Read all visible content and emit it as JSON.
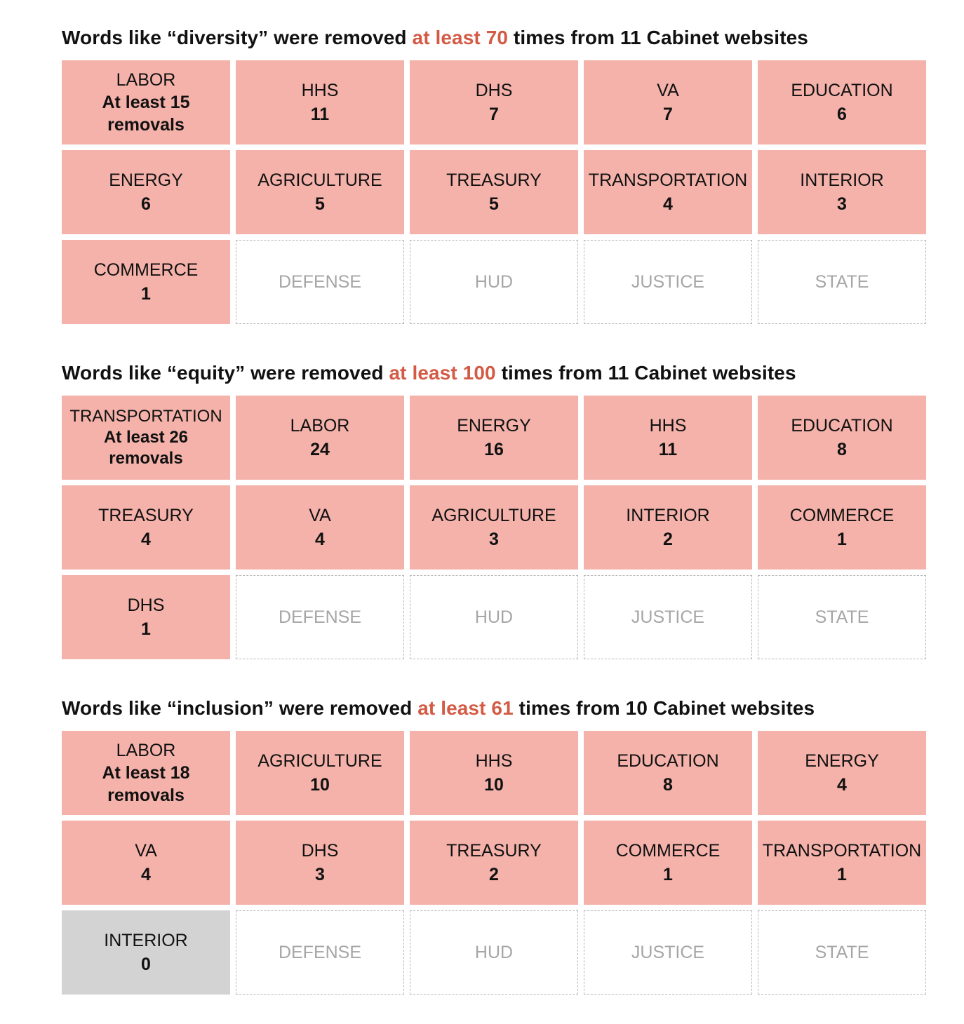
{
  "chart_data": [
    {
      "type": "table",
      "title": {
        "before": "Words like “diversity” were removed ",
        "highlight": "at least 70",
        "after": " times from 11 Cabinet websites"
      },
      "lead": {
        "name": "LABOR",
        "value": 15,
        "line1": "At least 15",
        "line2": "removals"
      },
      "categories": [
        "HHS",
        "DHS",
        "VA",
        "EDUCATION",
        "ENERGY",
        "AGRICULTURE",
        "TREASURY",
        "TRANSPORTATION",
        "INTERIOR",
        "COMMERCE"
      ],
      "values": [
        11,
        7,
        7,
        6,
        6,
        5,
        5,
        4,
        3,
        1
      ],
      "no_data": [
        "DEFENSE",
        "HUD",
        "JUSTICE",
        "STATE"
      ]
    },
    {
      "type": "table",
      "title": {
        "before": "Words like “equity” were removed ",
        "highlight": "at least 100",
        "after": " times from 11 Cabinet websites"
      },
      "lead": {
        "name": "TRANSPORTATION",
        "value": 26,
        "line1": "At least 26",
        "line2": "removals"
      },
      "categories": [
        "LABOR",
        "ENERGY",
        "HHS",
        "EDUCATION",
        "TREASURY",
        "VA",
        "AGRICULTURE",
        "INTERIOR",
        "COMMERCE",
        "DHS"
      ],
      "values": [
        24,
        16,
        11,
        8,
        4,
        4,
        3,
        2,
        1,
        1
      ],
      "no_data": [
        "DEFENSE",
        "HUD",
        "JUSTICE",
        "STATE"
      ]
    },
    {
      "type": "table",
      "title": {
        "before": "Words like “inclusion” were removed ",
        "highlight": "at least 61",
        "after": " times from 10 Cabinet websites"
      },
      "lead": {
        "name": "LABOR",
        "value": 18,
        "line1": "At least 18",
        "line2": "removals"
      },
      "categories": [
        "AGRICULTURE",
        "HHS",
        "EDUCATION",
        "ENERGY",
        "VA",
        "DHS",
        "TREASURY",
        "COMMERCE",
        "TRANSPORTATION",
        "INTERIOR"
      ],
      "values": [
        10,
        10,
        8,
        4,
        4,
        3,
        2,
        1,
        1,
        0
      ],
      "no_data": [
        "DEFENSE",
        "HUD",
        "JUSTICE",
        "STATE"
      ]
    }
  ],
  "colors": {
    "filled": "#f4b2aa",
    "zero": "#d3d3d3",
    "highlight": "#d35b45",
    "empty_border": "#b7b7b7",
    "empty_text": "#a6a6a6"
  }
}
